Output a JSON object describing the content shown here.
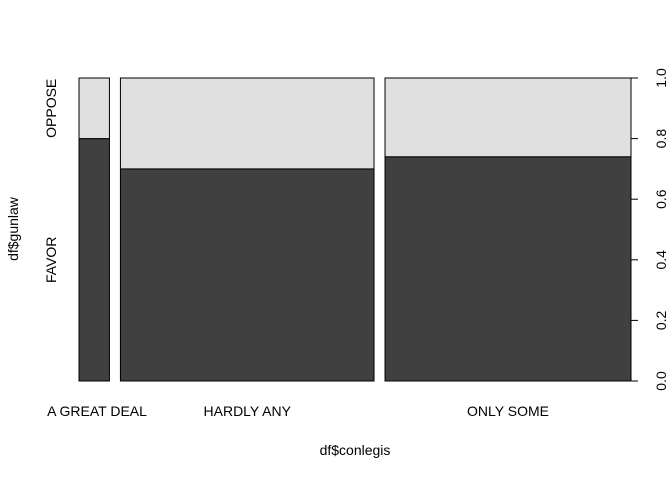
{
  "chart_data": {
    "type": "mosaic",
    "title": "",
    "xlabel": "df$conlegis",
    "ylabel": "df$gunlaw",
    "x_categories": [
      "A GREAT DEAL",
      "HARDLY ANY",
      "ONLY SOME"
    ],
    "x_widths": [
      0.12,
      1.0,
      0.97
    ],
    "y_categories": [
      "FAVOR",
      "OPPOSE"
    ],
    "series": [
      {
        "name": "FAVOR",
        "color": "#404040",
        "values": [
          0.8,
          0.7,
          0.74
        ]
      },
      {
        "name": "OPPOSE",
        "color": "#e0e0e0",
        "values": [
          0.2,
          0.3,
          0.26
        ]
      }
    ],
    "right_axis": {
      "ticks": [
        "0.0",
        "0.2",
        "0.4",
        "0.6",
        "0.8",
        "1.0"
      ],
      "range": [
        0,
        1
      ]
    }
  }
}
